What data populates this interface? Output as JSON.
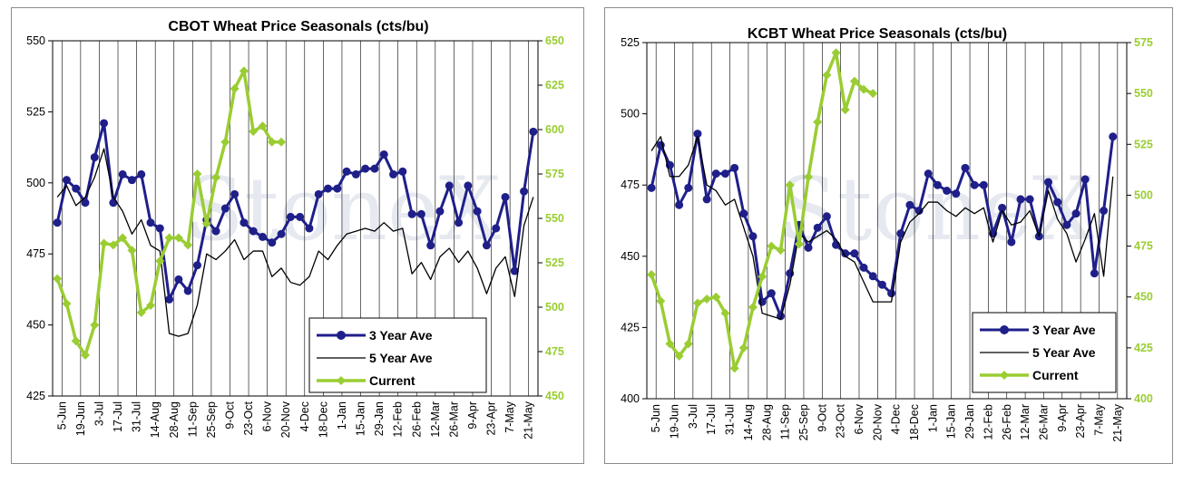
{
  "watermark_text": "StoneX",
  "colors": {
    "three_year": "#1f1f8a",
    "five_year": "#000000",
    "current": "#9acd32",
    "grid": "#000000"
  },
  "legend": {
    "three_year": "3 Year Ave",
    "five_year": "5 Year Ave",
    "current": "Current"
  },
  "chart_data": [
    {
      "type": "line",
      "title": "CBOT Wheat Price Seasonals (cts/bu)",
      "xlabels": [
        "5-Jun",
        "19-Jun",
        "3-Jul",
        "17-Jul",
        "31-Jul",
        "14-Aug",
        "28-Aug",
        "11-Sep",
        "25-Sep",
        "9-Oct",
        "23-Oct",
        "6-Nov",
        "20-Nov",
        "4-Dec",
        "18-Dec",
        "1-Jan",
        "15-Jan",
        "29-Jan",
        "12-Feb",
        "26-Feb",
        "12-Mar",
        "26-Mar",
        "9-Apr",
        "23-Apr",
        "7-May",
        "21-May"
      ],
      "ylim_left": [
        425,
        550
      ],
      "yticks_left": [
        425,
        450,
        475,
        500,
        525,
        550
      ],
      "ylim_right": [
        450,
        650
      ],
      "yticks_right": [
        450,
        475,
        500,
        525,
        550,
        575,
        600,
        625,
        650
      ],
      "series": [
        {
          "name": "3 Year Ave",
          "axis": "left",
          "values": [
            486,
            501,
            498,
            493,
            509,
            521,
            493,
            503,
            501,
            503,
            486,
            484,
            459,
            466,
            462,
            471,
            487,
            483,
            491,
            496,
            486,
            483,
            481,
            479,
            482,
            488,
            488,
            484,
            496,
            498,
            498,
            504,
            503,
            505,
            505,
            510,
            503,
            504,
            489,
            489,
            478,
            490,
            499,
            486,
            499,
            490,
            478,
            484,
            495,
            469,
            497,
            518
          ]
        },
        {
          "name": "5 Year Ave",
          "axis": "left",
          "values": [
            495,
            499,
            492,
            495,
            502,
            512,
            495,
            490,
            482,
            487,
            478,
            476,
            447,
            446,
            447,
            457,
            475,
            473,
            476,
            480,
            473,
            476,
            476,
            467,
            470,
            465,
            464,
            467,
            476,
            473,
            478,
            482,
            483,
            484,
            483,
            486,
            483,
            484,
            468,
            472,
            466,
            474,
            477,
            472,
            476,
            470,
            461,
            470,
            474,
            460,
            485,
            495
          ]
        },
        {
          "name": "Current",
          "axis": "right",
          "values": [
            516,
            502,
            481,
            473,
            490,
            536,
            535,
            539,
            532,
            497,
            501,
            526,
            539,
            539,
            535,
            575,
            547,
            573,
            593,
            623,
            633,
            599,
            602,
            593,
            593
          ]
        }
      ]
    },
    {
      "type": "line",
      "title": "KCBT Wheat Price Seasonals (cts/bu)",
      "xlabels": [
        "5-Jun",
        "19-Jun",
        "3-Jul",
        "17-Jul",
        "31-Jul",
        "14-Aug",
        "28-Aug",
        "11-Sep",
        "25-Sep",
        "9-Oct",
        "23-Oct",
        "6-Nov",
        "20-Nov",
        "4-Dec",
        "18-Dec",
        "1-Jan",
        "15-Jan",
        "29-Jan",
        "12-Feb",
        "26-Feb",
        "12-Mar",
        "26-Mar",
        "9-Apr",
        "23-Apr",
        "7-May",
        "21-May"
      ],
      "ylim_left": [
        400,
        525
      ],
      "yticks_left": [
        400,
        425,
        450,
        475,
        500,
        525
      ],
      "ylim_right": [
        400,
        575
      ],
      "yticks_right": [
        400,
        425,
        450,
        475,
        500,
        525,
        550,
        575
      ],
      "series": [
        {
          "name": "3 Year Ave",
          "axis": "left",
          "values": [
            474,
            489,
            482,
            468,
            474,
            493,
            470,
            479,
            479,
            481,
            465,
            457,
            434,
            437,
            429,
            444,
            461,
            453,
            460,
            464,
            454,
            451,
            451,
            446,
            443,
            440,
            437,
            458,
            468,
            466,
            479,
            475,
            473,
            472,
            481,
            475,
            475,
            458,
            467,
            455,
            470,
            470,
            457,
            476,
            469,
            461,
            465,
            477,
            444,
            466,
            492
          ]
        },
        {
          "name": "5 Year Ave",
          "axis": "left",
          "values": [
            487,
            492,
            478,
            478,
            482,
            492,
            475,
            473,
            468,
            470,
            460,
            450,
            430,
            429,
            428,
            440,
            458,
            455,
            457,
            459,
            456,
            450,
            448,
            441,
            434,
            434,
            434,
            455,
            462,
            465,
            469,
            469,
            466,
            464,
            467,
            465,
            467,
            455,
            466,
            461,
            462,
            466,
            457,
            473,
            463,
            458,
            448,
            456,
            465,
            443,
            478
          ]
        },
        {
          "name": "Current",
          "axis": "right",
          "values": [
            461,
            448,
            427,
            421,
            427,
            447,
            449,
            450,
            442,
            415,
            425,
            445,
            460,
            475,
            473,
            505,
            476,
            509,
            536,
            559,
            570,
            542,
            556,
            552,
            550
          ]
        }
      ]
    }
  ]
}
